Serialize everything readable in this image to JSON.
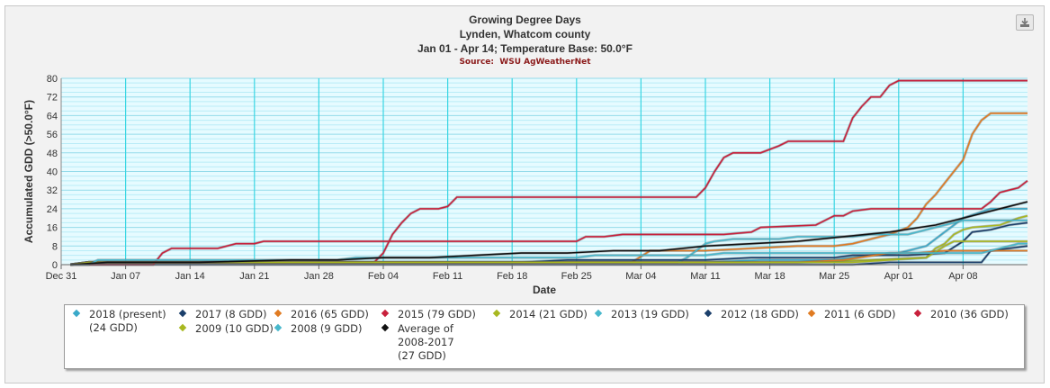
{
  "export_icon": "download-icon",
  "chart_data": {
    "type": "line",
    "title": "Growing Degree Days",
    "subtitle_location": "Lynden, Whatcom county",
    "subtitle_range": "Jan 01 - Apr 14; Temperature Base: 50.0°F",
    "source_label": "Source:",
    "source_name": "WSU AgWeatherNet",
    "xlabel": "Date",
    "ylabel": "Accumulated GDD (>50.0°F)",
    "ylim": [
      0,
      80
    ],
    "yticks": [
      0,
      8,
      16,
      24,
      32,
      40,
      48,
      56,
      64,
      72,
      80
    ],
    "xlim": [
      0,
      105
    ],
    "xticks": [
      {
        "day": 0,
        "label": "Dec 31"
      },
      {
        "day": 7,
        "label": "Jan 07"
      },
      {
        "day": 14,
        "label": "Jan 14"
      },
      {
        "day": 21,
        "label": "Jan 21"
      },
      {
        "day": 28,
        "label": "Jan 28"
      },
      {
        "day": 35,
        "label": "Feb 04"
      },
      {
        "day": 42,
        "label": "Feb 11"
      },
      {
        "day": 49,
        "label": "Feb 18"
      },
      {
        "day": 56,
        "label": "Feb 25"
      },
      {
        "day": 63,
        "label": "Mar 04"
      },
      {
        "day": 70,
        "label": "Mar 11"
      },
      {
        "day": 77,
        "label": "Mar 18"
      },
      {
        "day": 84,
        "label": "Mar 25"
      },
      {
        "day": 91,
        "label": "Apr 01"
      },
      {
        "day": 98,
        "label": "Apr 08"
      }
    ],
    "grid": true,
    "legend_position": "bottom",
    "series": [
      {
        "name": "2018 (present) (24 GDD)",
        "color": "#3aa9c9",
        "points": [
          [
            1,
            0
          ],
          [
            3,
            1
          ],
          [
            70,
            1
          ],
          [
            76,
            2
          ],
          [
            84,
            2
          ],
          [
            88,
            4
          ],
          [
            91,
            5
          ],
          [
            94,
            8
          ],
          [
            96,
            14
          ],
          [
            98,
            20
          ],
          [
            101,
            24
          ],
          [
            105,
            24
          ]
        ]
      },
      {
        "name": "2017 (8 GDD)",
        "color": "#1b3f6b",
        "points": [
          [
            1,
            0
          ],
          [
            75,
            0
          ],
          [
            86,
            0
          ],
          [
            90,
            1
          ],
          [
            100,
            1
          ],
          [
            101,
            6
          ],
          [
            105,
            8
          ]
        ]
      },
      {
        "name": "2016 (65 GDD)",
        "color": "#e07b22",
        "points": [
          [
            1,
            0
          ],
          [
            3,
            1
          ],
          [
            62,
            1
          ],
          [
            64,
            6
          ],
          [
            70,
            6
          ],
          [
            75,
            7
          ],
          [
            80,
            8
          ],
          [
            84,
            8
          ],
          [
            86,
            9
          ],
          [
            88,
            11
          ],
          [
            90,
            13
          ],
          [
            92,
            16
          ],
          [
            93,
            20
          ],
          [
            94,
            26
          ],
          [
            95,
            30
          ],
          [
            96,
            35
          ],
          [
            98,
            45
          ],
          [
            99,
            56
          ],
          [
            100,
            62
          ],
          [
            101,
            65
          ],
          [
            105,
            65
          ]
        ]
      },
      {
        "name": "2015 (79 GDD)",
        "color": "#c8203c",
        "points": [
          [
            1,
            0
          ],
          [
            3,
            1
          ],
          [
            34,
            1
          ],
          [
            35,
            5
          ],
          [
            36,
            13
          ],
          [
            37,
            18
          ],
          [
            38,
            22
          ],
          [
            39,
            24
          ],
          [
            41,
            24
          ],
          [
            42,
            25
          ],
          [
            43,
            29
          ],
          [
            69,
            29
          ],
          [
            70,
            33
          ],
          [
            71,
            40
          ],
          [
            72,
            46
          ],
          [
            73,
            48
          ],
          [
            76,
            48
          ],
          [
            78,
            51
          ],
          [
            79,
            53
          ],
          [
            85,
            53
          ],
          [
            86,
            63
          ],
          [
            87,
            68
          ],
          [
            88,
            72
          ],
          [
            89,
            72
          ],
          [
            90,
            77
          ],
          [
            91,
            79
          ],
          [
            105,
            79
          ]
        ]
      },
      {
        "name": "2014 (21 GDD)",
        "color": "#a8b820",
        "points": [
          [
            1,
            0
          ],
          [
            3,
            1
          ],
          [
            80,
            1
          ],
          [
            88,
            2
          ],
          [
            94,
            3
          ],
          [
            95,
            7
          ],
          [
            96,
            9
          ],
          [
            97,
            13
          ],
          [
            98,
            15
          ],
          [
            99,
            16
          ],
          [
            102,
            17
          ],
          [
            104,
            20
          ],
          [
            105,
            21
          ]
        ]
      },
      {
        "name": "2013 (19 GDD)",
        "color": "#48b8cc",
        "points": [
          [
            1,
            0
          ],
          [
            3,
            1
          ],
          [
            67,
            1
          ],
          [
            68,
            3
          ],
          [
            69,
            6
          ],
          [
            70,
            9
          ],
          [
            71,
            10
          ],
          [
            73,
            11
          ],
          [
            78,
            11
          ],
          [
            80,
            12
          ],
          [
            84,
            12
          ],
          [
            86,
            12
          ],
          [
            88,
            13
          ],
          [
            92,
            13
          ],
          [
            94,
            15
          ],
          [
            96,
            17
          ],
          [
            98,
            19
          ],
          [
            105,
            19
          ]
        ]
      },
      {
        "name": "2012 (18 GDD)",
        "color": "#1b3f6b",
        "points": [
          [
            1,
            0
          ],
          [
            3,
            1
          ],
          [
            50,
            1
          ],
          [
            55,
            2
          ],
          [
            70,
            2
          ],
          [
            75,
            3
          ],
          [
            84,
            3
          ],
          [
            86,
            4
          ],
          [
            92,
            4
          ],
          [
            96,
            5
          ],
          [
            98,
            10
          ],
          [
            99,
            14
          ],
          [
            101,
            15
          ],
          [
            103,
            17
          ],
          [
            105,
            18
          ]
        ]
      },
      {
        "name": "2011 (6 GDD)",
        "color": "#e07b22",
        "points": [
          [
            1,
            0
          ],
          [
            3,
            1
          ],
          [
            60,
            1
          ],
          [
            80,
            1
          ],
          [
            85,
            2
          ],
          [
            90,
            5
          ],
          [
            93,
            5
          ],
          [
            96,
            6
          ],
          [
            105,
            6
          ]
        ]
      },
      {
        "name": "2010 (36 GDD)",
        "color": "#c8203c",
        "points": [
          [
            1,
            0
          ],
          [
            3,
            0
          ],
          [
            10,
            0
          ],
          [
            11,
            5
          ],
          [
            12,
            7
          ],
          [
            17,
            7
          ],
          [
            18,
            8
          ],
          [
            19,
            9
          ],
          [
            21,
            9
          ],
          [
            22,
            10
          ],
          [
            45,
            10
          ],
          [
            47,
            10
          ],
          [
            56,
            10
          ],
          [
            57,
            12
          ],
          [
            59,
            12
          ],
          [
            61,
            13
          ],
          [
            70,
            13
          ],
          [
            72,
            13
          ],
          [
            75,
            14
          ],
          [
            76,
            16
          ],
          [
            82,
            17
          ],
          [
            84,
            21
          ],
          [
            85,
            21
          ],
          [
            86,
            23
          ],
          [
            88,
            24
          ],
          [
            100,
            24
          ],
          [
            101,
            27
          ],
          [
            102,
            31
          ],
          [
            103,
            32
          ],
          [
            104,
            33
          ],
          [
            105,
            36
          ]
        ]
      },
      {
        "name": "2009 (10 GDD)",
        "color": "#a8b820",
        "points": [
          [
            1,
            0
          ],
          [
            3,
            1
          ],
          [
            60,
            1
          ],
          [
            70,
            1
          ],
          [
            80,
            1
          ],
          [
            86,
            1
          ],
          [
            90,
            2
          ],
          [
            94,
            3
          ],
          [
            96,
            8
          ],
          [
            97,
            10
          ],
          [
            105,
            10
          ]
        ]
      },
      {
        "name": "2008 (9 GDD)",
        "color": "#48b8cc",
        "points": [
          [
            1,
            0
          ],
          [
            3,
            0
          ],
          [
            4,
            2
          ],
          [
            30,
            2
          ],
          [
            32,
            3
          ],
          [
            40,
            3
          ],
          [
            44,
            3
          ],
          [
            56,
            3
          ],
          [
            58,
            4
          ],
          [
            70,
            4
          ],
          [
            72,
            5
          ],
          [
            80,
            5
          ],
          [
            85,
            5
          ],
          [
            90,
            5
          ],
          [
            95,
            5
          ],
          [
            100,
            5
          ],
          [
            102,
            7
          ],
          [
            104,
            9
          ],
          [
            105,
            9
          ]
        ]
      },
      {
        "name": "Average of 2008-2017 (27 GDD)",
        "color": "#111111",
        "points": [
          [
            1,
            0
          ],
          [
            5,
            1
          ],
          [
            15,
            1
          ],
          [
            25,
            2
          ],
          [
            30,
            2
          ],
          [
            35,
            3
          ],
          [
            40,
            3
          ],
          [
            45,
            4
          ],
          [
            50,
            5
          ],
          [
            55,
            5
          ],
          [
            60,
            6
          ],
          [
            65,
            6
          ],
          [
            70,
            8
          ],
          [
            75,
            9
          ],
          [
            80,
            10
          ],
          [
            85,
            12
          ],
          [
            90,
            14
          ],
          [
            95,
            17
          ],
          [
            100,
            22
          ],
          [
            103,
            25
          ],
          [
            105,
            27
          ]
        ]
      }
    ]
  }
}
